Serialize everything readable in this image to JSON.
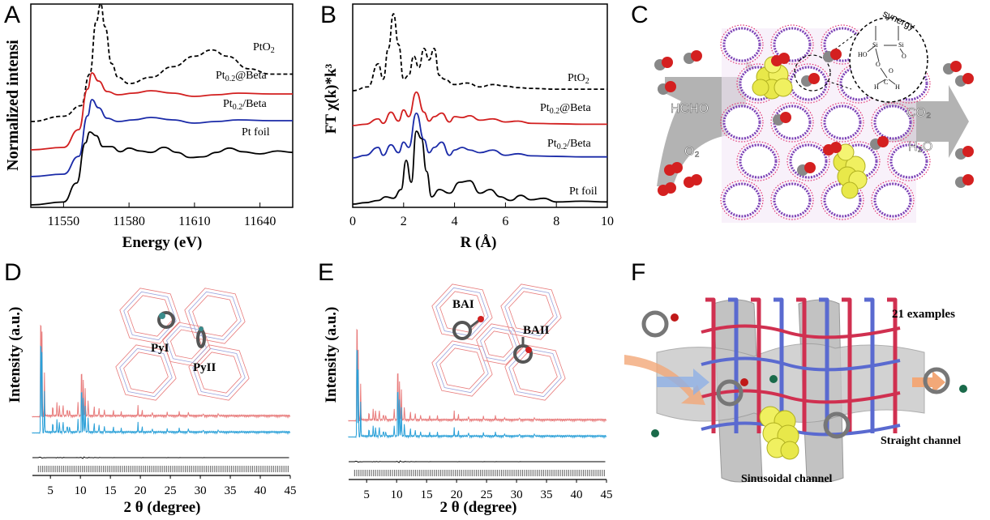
{
  "panels": {
    "A": {
      "label": "A",
      "ylabel": "Normalized intensi",
      "xlabel": "Energy (eV)",
      "xticks": [
        "11550",
        "11580",
        "11610",
        "11640"
      ]
    },
    "B": {
      "label": "B",
      "ylabel": "FT χ(k)*k³",
      "xlabel": "R (Å)",
      "xticks": [
        "0",
        "2",
        "4",
        "6",
        "8",
        "10"
      ]
    },
    "C": {
      "label": "C",
      "synergy": "synergy",
      "hcho": "HCHO",
      "o2": "O₂",
      "co2": "CO₂",
      "h2o": "H₂O",
      "mol_labels": [
        "HO",
        "Si",
        "Si",
        "O",
        "O",
        "O",
        "C",
        "H",
        "H"
      ]
    },
    "D": {
      "label": "D",
      "ylabel": "Intensity (a.u.)",
      "xlabel": "2 θ (degree)",
      "xticks": [
        "5",
        "10",
        "15",
        "20",
        "25",
        "30",
        "35",
        "40",
        "45"
      ],
      "inset1": "PyI",
      "inset2": "PyII"
    },
    "E": {
      "label": "E",
      "ylabel": "Intensity (a.u.)",
      "xlabel": "2 θ (degree)",
      "xticks": [
        "5",
        "10",
        "15",
        "20",
        "25",
        "30",
        "35",
        "40",
        "45"
      ],
      "inset1": "BAI",
      "inset2": "BAII"
    },
    "F": {
      "label": "F",
      "examples": "21 examples",
      "straight": "Straight channel",
      "sinusoidal": "Sinusoidal channel"
    }
  },
  "chart_data": [
    {
      "type": "line",
      "panel": "A",
      "xlabel": "Energy (eV)",
      "ylabel": "Normalized intensi",
      "xlim": [
        11535,
        11655
      ],
      "series": [
        {
          "name": "PtO2",
          "color": "#000000",
          "dash": true,
          "x": [
            11535,
            11550,
            11558,
            11562,
            11565,
            11567,
            11569,
            11572,
            11575,
            11580,
            11590,
            11600,
            11610,
            11618,
            11625,
            11635,
            11645,
            11655
          ],
          "y": [
            0.0,
            0.05,
            0.15,
            0.45,
            0.95,
            1.12,
            0.9,
            0.55,
            0.42,
            0.36,
            0.42,
            0.52,
            0.62,
            0.68,
            0.62,
            0.5,
            0.45,
            0.45
          ]
        },
        {
          "name": "Pt0.2@Beta",
          "color": "#d21f1f",
          "dash": false,
          "x": [
            11535,
            11550,
            11557,
            11561,
            11563,
            11566,
            11570,
            11575,
            11582,
            11590,
            11600,
            11610,
            11620,
            11630,
            11645,
            11655
          ],
          "y": [
            0.0,
            0.03,
            0.25,
            0.75,
            0.95,
            0.85,
            0.72,
            0.68,
            0.7,
            0.73,
            0.7,
            0.66,
            0.68,
            0.7,
            0.69,
            0.69
          ]
        },
        {
          "name": "Pt0.2/Beta",
          "color": "#1a2aa8",
          "dash": false,
          "x": [
            11535,
            11550,
            11557,
            11561,
            11563,
            11566,
            11570,
            11575,
            11582,
            11590,
            11600,
            11610,
            11620,
            11630,
            11645,
            11655
          ],
          "y": [
            0.0,
            0.03,
            0.25,
            0.75,
            0.95,
            0.85,
            0.72,
            0.68,
            0.7,
            0.73,
            0.7,
            0.66,
            0.68,
            0.7,
            0.69,
            0.69
          ]
        },
        {
          "name": "Pt foil",
          "color": "#000000",
          "dash": false,
          "x": [
            11535,
            11550,
            11556,
            11560,
            11562,
            11565,
            11568,
            11572,
            11576,
            11580,
            11585,
            11590,
            11596,
            11602,
            11608,
            11614,
            11620,
            11626,
            11632,
            11640,
            11648,
            11655
          ],
          "y": [
            0.0,
            0.04,
            0.3,
            0.85,
            1.0,
            0.95,
            0.8,
            0.8,
            0.73,
            0.78,
            0.74,
            0.72,
            0.79,
            0.72,
            0.65,
            0.66,
            0.72,
            0.78,
            0.73,
            0.7,
            0.74,
            0.72
          ]
        }
      ]
    },
    {
      "type": "line",
      "panel": "B",
      "xlabel": "R (Å)",
      "ylabel": "FT χ(k)*k³",
      "xlim": [
        0,
        10
      ],
      "series": [
        {
          "name": "PtO2",
          "color": "#000000",
          "dash": true,
          "x": [
            0.0,
            0.6,
            1.0,
            1.2,
            1.4,
            1.6,
            1.8,
            2.0,
            2.2,
            2.4,
            2.6,
            2.8,
            3.0,
            3.2,
            3.4,
            3.6,
            4.0,
            4.5,
            5.0,
            5.5,
            6.0,
            6.5,
            7.0,
            8.0,
            9.0,
            10.0
          ],
          "y": [
            0.0,
            0.05,
            0.35,
            0.15,
            0.55,
            1.0,
            0.6,
            0.15,
            0.2,
            0.45,
            0.3,
            0.55,
            0.4,
            0.55,
            0.2,
            0.15,
            0.08,
            0.1,
            0.05,
            0.08,
            0.06,
            0.04,
            0.03,
            0.02,
            0.02,
            0.02
          ]
        },
        {
          "name": "Pt0.2@Beta",
          "color": "#d21f1f",
          "dash": false,
          "x": [
            0.0,
            0.5,
            1.0,
            1.2,
            1.5,
            1.8,
            2.0,
            2.2,
            2.5,
            2.8,
            3.0,
            3.2,
            3.5,
            3.8,
            4.0,
            4.3,
            4.6,
            5.0,
            5.5,
            6.0,
            6.5,
            7.0,
            8.0,
            9.0,
            10.0
          ],
          "y": [
            0.0,
            0.03,
            0.15,
            0.05,
            0.3,
            0.1,
            0.35,
            0.2,
            0.75,
            0.3,
            0.1,
            0.2,
            0.28,
            0.08,
            0.2,
            0.18,
            0.22,
            0.12,
            0.15,
            0.08,
            0.1,
            0.05,
            0.04,
            0.03,
            0.03
          ]
        },
        {
          "name": "Pt0.2/Beta",
          "color": "#1a2aa8",
          "dash": false,
          "x": [
            0.0,
            0.5,
            1.0,
            1.2,
            1.5,
            1.8,
            2.0,
            2.2,
            2.5,
            2.8,
            3.0,
            3.2,
            3.5,
            3.8,
            4.0,
            4.3,
            4.6,
            5.0,
            5.5,
            6.0,
            6.5,
            7.0,
            8.0,
            9.0,
            10.0
          ],
          "y": [
            0.0,
            0.05,
            0.2,
            0.05,
            0.25,
            0.1,
            0.3,
            0.2,
            0.85,
            0.35,
            0.1,
            0.2,
            0.3,
            0.05,
            0.15,
            0.2,
            0.15,
            0.1,
            0.15,
            0.05,
            0.08,
            0.04,
            0.03,
            0.02,
            0.02
          ]
        },
        {
          "name": "Pt foil",
          "color": "#000000",
          "dash": false,
          "x": [
            0.0,
            0.5,
            1.0,
            1.3,
            1.6,
            1.9,
            2.1,
            2.3,
            2.5,
            2.7,
            2.9,
            3.1,
            3.4,
            3.8,
            4.2,
            4.6,
            5.0,
            5.4,
            5.8,
            6.2,
            6.6,
            7.0,
            7.5,
            8.0,
            9.0,
            10.0
          ],
          "y": [
            0.0,
            0.02,
            0.05,
            0.1,
            0.08,
            0.2,
            0.6,
            0.3,
            1.0,
            0.9,
            0.45,
            0.1,
            0.2,
            0.15,
            0.3,
            0.32,
            0.15,
            0.2,
            0.1,
            0.05,
            0.12,
            0.06,
            0.08,
            0.03,
            0.04,
            0.03
          ]
        }
      ]
    },
    {
      "type": "line",
      "panel": "D",
      "xlabel": "2 θ (degree)",
      "ylabel": "Intensity (a.u.)",
      "xlim": [
        2,
        45
      ],
      "peaks": {
        "positions": [
          3.4,
          3.6,
          4.0,
          5.4,
          6.1,
          6.5,
          7.1,
          7.8,
          8.2,
          9.6,
          10.2,
          10.5,
          10.8,
          11.3,
          12.3,
          13.1,
          14.0,
          15.5,
          16.8,
          19.6,
          20.3,
          22.0,
          24.5,
          26.5,
          28.0,
          30.5,
          33.0
        ],
        "heights": [
          1.0,
          0.6,
          0.3,
          0.08,
          0.1,
          0.08,
          0.09,
          0.06,
          0.05,
          0.1,
          0.45,
          0.28,
          0.2,
          0.12,
          0.07,
          0.06,
          0.05,
          0.04,
          0.03,
          0.07,
          0.04,
          0.03,
          0.03,
          0.03,
          0.03,
          0.02,
          0.02
        ]
      }
    },
    {
      "type": "line",
      "panel": "E",
      "xlabel": "2 θ (degree)",
      "ylabel": "Intensity (a.u.)",
      "xlim": [
        2,
        45
      ],
      "peaks": {
        "positions": [
          3.4,
          3.6,
          4.0,
          5.4,
          6.1,
          6.5,
          7.1,
          7.8,
          8.2,
          9.6,
          10.2,
          10.5,
          10.8,
          11.3,
          12.3,
          13.1,
          14.0,
          15.5,
          16.8,
          19.6,
          20.3,
          22.0,
          24.5,
          26.5,
          28.0,
          30.5,
          33.0
        ],
        "heights": [
          1.0,
          0.5,
          0.25,
          0.06,
          0.08,
          0.07,
          0.08,
          0.05,
          0.04,
          0.08,
          0.5,
          0.3,
          0.22,
          0.1,
          0.06,
          0.05,
          0.04,
          0.03,
          0.03,
          0.06,
          0.04,
          0.03,
          0.03,
          0.03,
          0.02,
          0.02,
          0.02
        ]
      }
    }
  ]
}
